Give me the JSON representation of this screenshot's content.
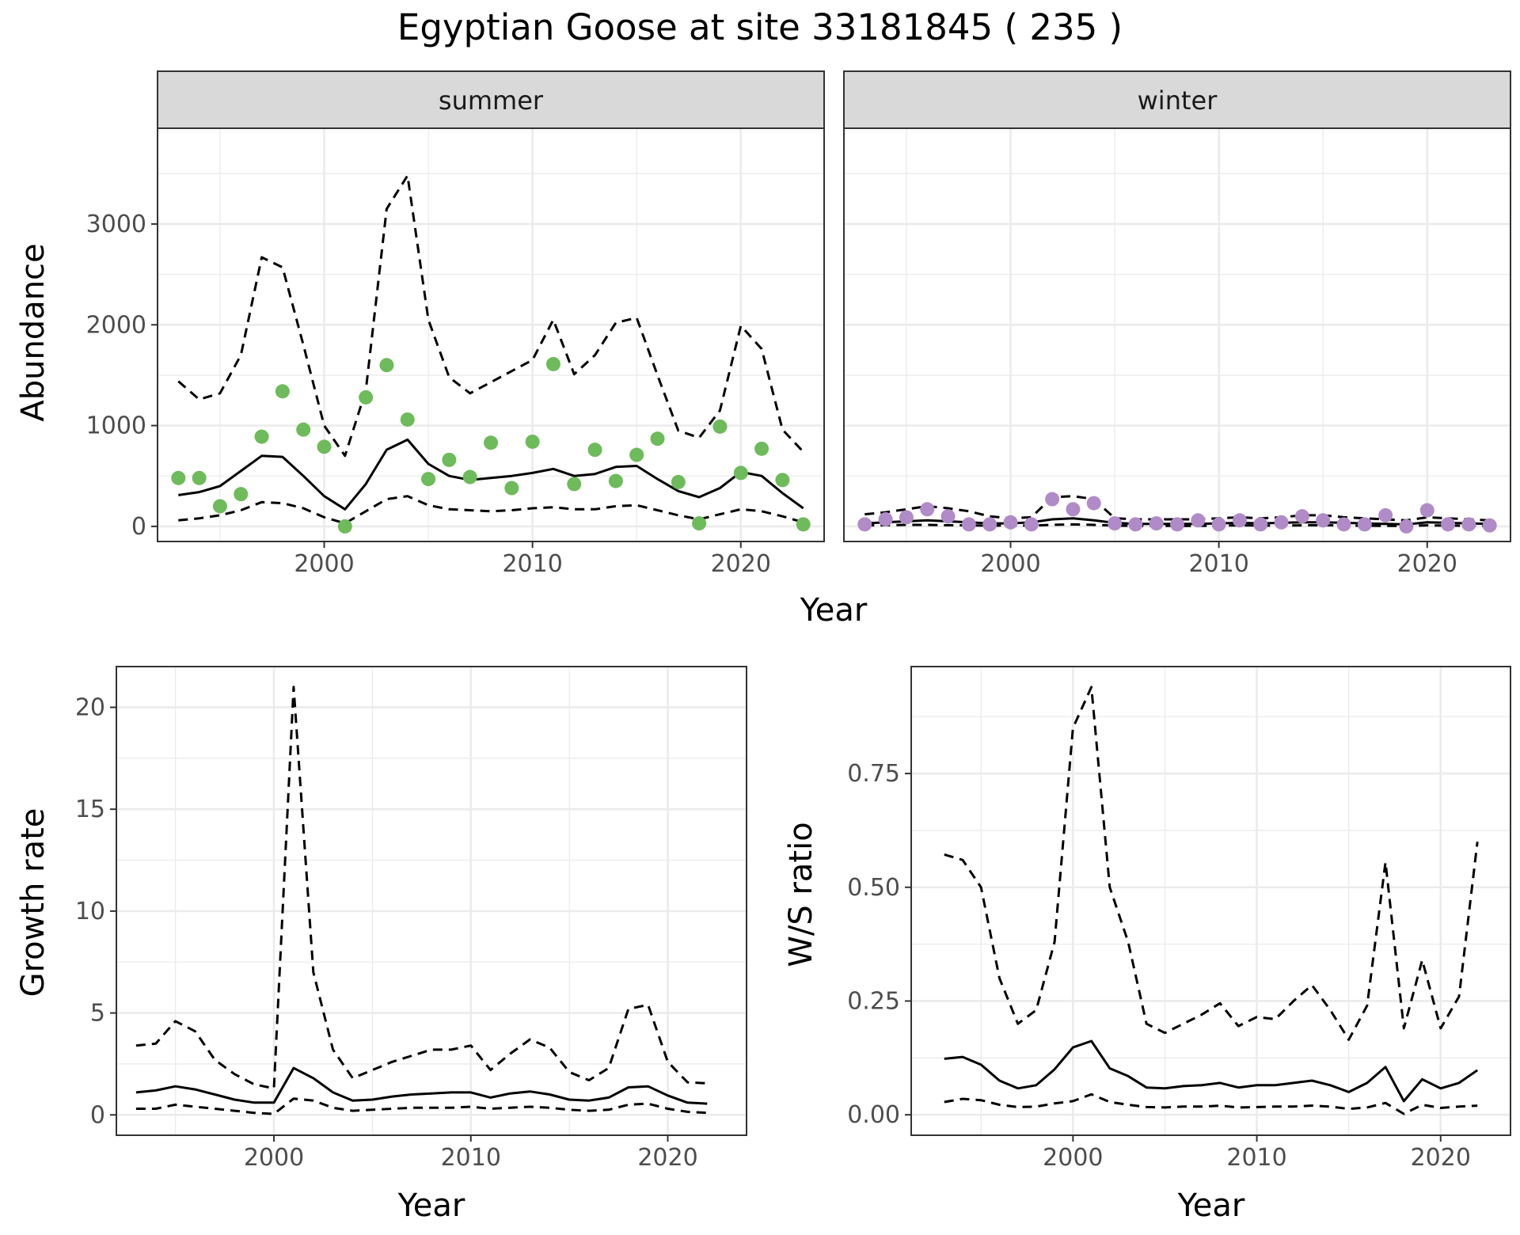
{
  "page_title": "Egyptian Goose at site 33181845 ( 235 )",
  "colors": {
    "summer_points": "#6dbb5a",
    "winter_points": "#b08bc8",
    "lines": "#000000",
    "strip_fill": "#d9d9d9",
    "grid": "#ebebeb"
  },
  "chart_data": [
    {
      "id": "abundance-summer",
      "type": "line",
      "facet": "summer",
      "xlabel": "Year",
      "ylabel": "Abundance",
      "xlim": [
        1992,
        2024
      ],
      "ylim": [
        -150,
        3950
      ],
      "xticks": [
        2000,
        2010,
        2020
      ],
      "yticks": [
        0,
        1000,
        2000,
        3000
      ],
      "x": [
        1993,
        1994,
        1995,
        1996,
        1997,
        1998,
        1999,
        2000,
        2001,
        2002,
        2003,
        2004,
        2005,
        2006,
        2007,
        2008,
        2009,
        2010,
        2011,
        2012,
        2013,
        2014,
        2015,
        2016,
        2017,
        2018,
        2019,
        2020,
        2021,
        2022,
        2023
      ],
      "points_color": "#6dbb5a",
      "series": [
        {
          "style": "solid",
          "values": [
            310,
            340,
            400,
            550,
            700,
            690,
            500,
            300,
            170,
            420,
            760,
            860,
            620,
            500,
            460,
            480,
            500,
            530,
            570,
            500,
            520,
            590,
            600,
            470,
            350,
            290,
            380,
            540,
            500,
            330,
            180
          ]
        },
        {
          "style": "dashed",
          "values": [
            60,
            80,
            110,
            160,
            240,
            230,
            180,
            90,
            30,
            150,
            270,
            300,
            210,
            170,
            160,
            150,
            160,
            180,
            190,
            170,
            170,
            200,
            210,
            160,
            110,
            70,
            120,
            170,
            150,
            100,
            40
          ]
        },
        {
          "style": "dashed",
          "values": [
            1440,
            1260,
            1320,
            1700,
            2670,
            2570,
            1800,
            1000,
            700,
            1350,
            3150,
            3480,
            2050,
            1480,
            1320,
            1430,
            1540,
            1650,
            2050,
            1510,
            1700,
            2020,
            2070,
            1500,
            950,
            880,
            1150,
            1990,
            1760,
            960,
            740
          ]
        },
        {
          "style": "points",
          "values": [
            480,
            480,
            200,
            320,
            890,
            1340,
            960,
            790,
            0,
            1280,
            1600,
            1060,
            470,
            660,
            490,
            830,
            380,
            840,
            1610,
            420,
            760,
            450,
            710,
            870,
            440,
            30,
            990,
            530,
            770,
            460,
            20
          ]
        }
      ]
    },
    {
      "id": "abundance-winter",
      "type": "line",
      "facet": "winter",
      "xlabel": "Year",
      "ylabel": "",
      "xlim": [
        1992,
        2024
      ],
      "ylim": [
        -150,
        3950
      ],
      "xticks": [
        2000,
        2010,
        2020
      ],
      "yticks": [
        0,
        1000,
        2000,
        3000
      ],
      "x": [
        1993,
        1994,
        1995,
        1996,
        1997,
        1998,
        1999,
        2000,
        2001,
        2002,
        2003,
        2004,
        2005,
        2006,
        2007,
        2008,
        2009,
        2010,
        2011,
        2012,
        2013,
        2014,
        2015,
        2016,
        2017,
        2018,
        2019,
        2020,
        2021,
        2022,
        2023
      ],
      "points_color": "#b08bc8",
      "series": [
        {
          "style": "solid",
          "values": [
            30,
            40,
            50,
            60,
            50,
            40,
            30,
            30,
            40,
            70,
            80,
            60,
            35,
            25,
            25,
            25,
            25,
            30,
            35,
            30,
            35,
            40,
            40,
            35,
            30,
            25,
            20,
            40,
            35,
            30,
            25
          ]
        },
        {
          "style": "dashed",
          "values": [
            10,
            12,
            15,
            15,
            12,
            10,
            8,
            8,
            8,
            15,
            20,
            15,
            8,
            5,
            5,
            5,
            5,
            8,
            10,
            8,
            8,
            10,
            12,
            8,
            6,
            5,
            5,
            10,
            8,
            6,
            5
          ]
        },
        {
          "style": "dashed",
          "values": [
            120,
            140,
            170,
            200,
            180,
            150,
            100,
            80,
            90,
            290,
            300,
            270,
            80,
            70,
            70,
            70,
            70,
            80,
            90,
            80,
            90,
            110,
            110,
            90,
            80,
            70,
            60,
            90,
            80,
            70,
            60
          ]
        },
        {
          "style": "points",
          "values": [
            20,
            70,
            90,
            170,
            100,
            20,
            20,
            40,
            20,
            270,
            170,
            230,
            30,
            20,
            30,
            20,
            60,
            20,
            60,
            20,
            40,
            100,
            60,
            20,
            20,
            110,
            0,
            160,
            20,
            20,
            10
          ]
        }
      ]
    },
    {
      "id": "growth-rate",
      "type": "line",
      "xlabel": "Year",
      "ylabel": "Growth rate",
      "xlim": [
        1992,
        2024
      ],
      "ylim": [
        -1,
        22
      ],
      "xticks": [
        2000,
        2010,
        2020
      ],
      "yticks": [
        0,
        5,
        10,
        15,
        20
      ],
      "x": [
        1993,
        1994,
        1995,
        1996,
        1997,
        1998,
        1999,
        2000,
        2001,
        2002,
        2003,
        2004,
        2005,
        2006,
        2007,
        2008,
        2009,
        2010,
        2011,
        2012,
        2013,
        2014,
        2015,
        2016,
        2017,
        2018,
        2019,
        2020,
        2021,
        2022
      ],
      "series": [
        {
          "style": "solid",
          "values": [
            1.1,
            1.2,
            1.4,
            1.25,
            1.0,
            0.75,
            0.6,
            0.6,
            2.3,
            1.8,
            1.1,
            0.7,
            0.75,
            0.9,
            1.0,
            1.05,
            1.1,
            1.1,
            0.85,
            1.05,
            1.15,
            1.0,
            0.75,
            0.7,
            0.85,
            1.35,
            1.4,
            0.95,
            0.6,
            0.55
          ]
        },
        {
          "style": "dashed",
          "values": [
            0.3,
            0.3,
            0.5,
            0.4,
            0.3,
            0.2,
            0.1,
            0.05,
            0.8,
            0.7,
            0.35,
            0.2,
            0.25,
            0.3,
            0.35,
            0.35,
            0.35,
            0.4,
            0.3,
            0.35,
            0.4,
            0.35,
            0.25,
            0.2,
            0.25,
            0.5,
            0.55,
            0.3,
            0.15,
            0.1
          ]
        },
        {
          "style": "dashed",
          "values": [
            3.4,
            3.5,
            4.6,
            4.1,
            2.7,
            2.0,
            1.5,
            1.3,
            21.0,
            7.0,
            3.2,
            1.8,
            2.2,
            2.6,
            2.9,
            3.2,
            3.2,
            3.4,
            2.2,
            3.0,
            3.7,
            3.3,
            2.1,
            1.7,
            2.3,
            5.2,
            5.4,
            2.6,
            1.6,
            1.55
          ]
        }
      ]
    },
    {
      "id": "ws-ratio",
      "type": "line",
      "xlabel": "Year",
      "ylabel": "W/S ratio",
      "xlim": [
        1991.2,
        2023.8
      ],
      "ylim": [
        -0.045,
        0.985
      ],
      "xticks": [
        2000,
        2010,
        2020
      ],
      "yticks": [
        0.0,
        0.25,
        0.5,
        0.75
      ],
      "ytick_labels": [
        "0.00",
        "0.25",
        "0.50",
        "0.75"
      ],
      "x": [
        1993,
        1994,
        1995,
        1996,
        1997,
        1998,
        1999,
        2000,
        2001,
        2002,
        2003,
        2004,
        2005,
        2006,
        2007,
        2008,
        2009,
        2010,
        2011,
        2012,
        2013,
        2014,
        2015,
        2016,
        2017,
        2018,
        2019,
        2020,
        2021,
        2022
      ],
      "series": [
        {
          "style": "solid",
          "values": [
            0.123,
            0.127,
            0.11,
            0.075,
            0.058,
            0.065,
            0.1,
            0.148,
            0.162,
            0.102,
            0.085,
            0.06,
            0.058,
            0.063,
            0.065,
            0.07,
            0.06,
            0.065,
            0.065,
            0.07,
            0.075,
            0.065,
            0.05,
            0.07,
            0.105,
            0.03,
            0.078,
            0.058,
            0.07,
            0.098
          ]
        },
        {
          "style": "dashed",
          "values": [
            0.028,
            0.035,
            0.032,
            0.022,
            0.017,
            0.018,
            0.025,
            0.03,
            0.045,
            0.028,
            0.022,
            0.017,
            0.016,
            0.018,
            0.018,
            0.02,
            0.016,
            0.017,
            0.018,
            0.018,
            0.02,
            0.018,
            0.013,
            0.016,
            0.026,
            0.002,
            0.022,
            0.015,
            0.018,
            0.02
          ]
        },
        {
          "style": "dashed",
          "values": [
            0.572,
            0.56,
            0.5,
            0.3,
            0.2,
            0.23,
            0.38,
            0.85,
            0.94,
            0.5,
            0.38,
            0.2,
            0.18,
            0.2,
            0.22,
            0.245,
            0.195,
            0.215,
            0.21,
            0.25,
            0.285,
            0.23,
            0.165,
            0.24,
            0.555,
            0.19,
            0.34,
            0.19,
            0.26,
            0.6
          ]
        }
      ]
    }
  ],
  "facets": {
    "summer": "summer",
    "winter": "winter"
  },
  "shared_x_title": "Year"
}
